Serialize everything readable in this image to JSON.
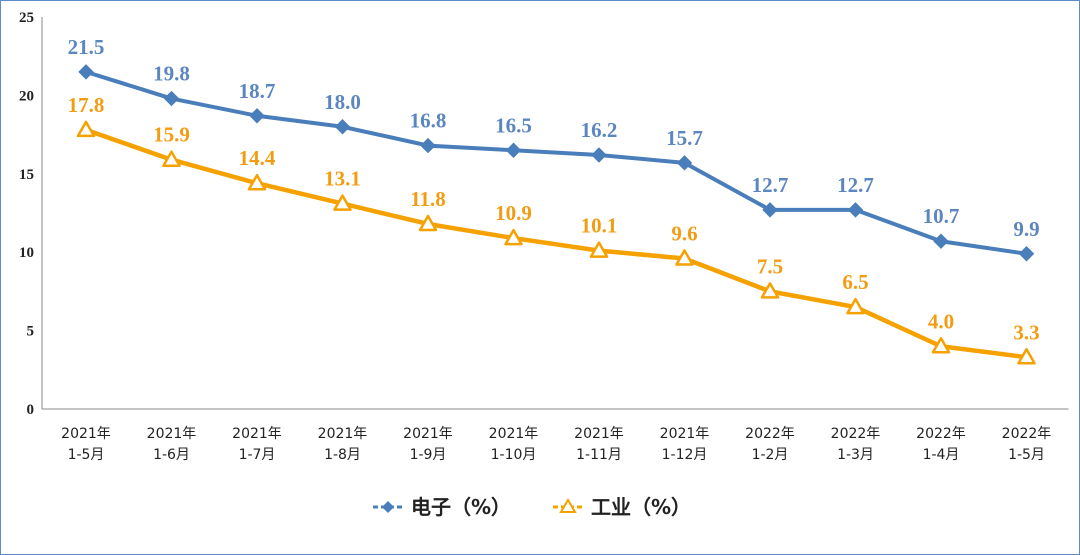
{
  "chart_data": {
    "type": "line",
    "categories": [
      [
        "2021年",
        "1-5月"
      ],
      [
        "2021年",
        "1-6月"
      ],
      [
        "2021年",
        "1-7月"
      ],
      [
        "2021年",
        "1-8月"
      ],
      [
        "2021年",
        "1-9月"
      ],
      [
        "2021年",
        "1-10月"
      ],
      [
        "2021年",
        "1-11月"
      ],
      [
        "2021年",
        "1-12月"
      ],
      [
        "2022年",
        "1-2月"
      ],
      [
        "2022年",
        "1-3月"
      ],
      [
        "2022年",
        "1-4月"
      ],
      [
        "2022年",
        "1-5月"
      ]
    ],
    "series": [
      {
        "name": "电子（%）",
        "color": "#4a7ebb",
        "label_color": "#5b86c0",
        "marker": "diamond",
        "values": [
          21.5,
          19.8,
          18.7,
          18.0,
          16.8,
          16.5,
          16.2,
          15.7,
          12.7,
          12.7,
          10.7,
          9.9
        ],
        "labels": [
          "21.5",
          "19.8",
          "18.7",
          "18.0",
          "16.8",
          "16.5",
          "16.2",
          "15.7",
          "12.7",
          "12.7",
          "10.7",
          "9.9"
        ]
      },
      {
        "name": "工业（%）",
        "color": "#f5a100",
        "label_color": "#f39c12",
        "marker": "triangle",
        "values": [
          17.8,
          15.9,
          14.4,
          13.1,
          11.8,
          10.9,
          10.1,
          9.6,
          7.5,
          6.5,
          4.0,
          3.3
        ],
        "labels": [
          "17.8",
          "15.9",
          "14.4",
          "13.1",
          "11.8",
          "10.9",
          "10.1",
          "9.6",
          "7.5",
          "6.5",
          "4.0",
          "3.3"
        ]
      }
    ],
    "ylim": [
      0,
      25
    ],
    "yticks": [
      0,
      5,
      10,
      15,
      20,
      25
    ],
    "ytick_labels": [
      "0",
      "5",
      "10",
      "15",
      "20",
      "25"
    ],
    "legend_position": "bottom-center",
    "grid": false
  }
}
